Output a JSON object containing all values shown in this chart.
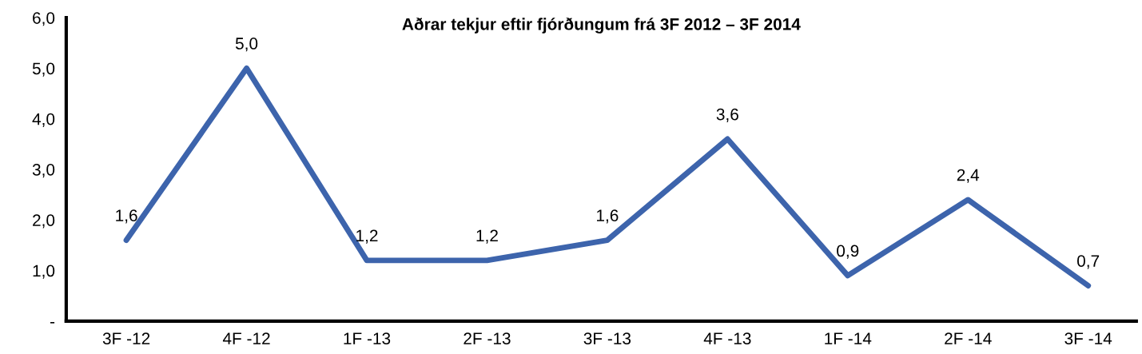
{
  "chart_data": {
    "type": "line",
    "title": "Aðrar tekjur eftir fjórðungum frá 3F 2012 – 3F 2014",
    "categories": [
      "3F -12",
      "4F -12",
      "1F -13",
      "2F -13",
      "3F -13",
      "4F -13",
      "1F -14",
      "2F -14",
      "3F -14"
    ],
    "series": [
      {
        "color": "#3d64ac",
        "values": [
          1.6,
          5.0,
          1.2,
          1.2,
          1.6,
          3.6,
          0.9,
          2.4,
          0.7
        ],
        "value_labels": [
          "1,6",
          "5,0",
          "1,2",
          "1,2",
          "1,6",
          "3,6",
          "0,9",
          "2,4",
          "0,7"
        ]
      }
    ],
    "ylim": [
      0,
      6
    ],
    "yticks": [
      {
        "value": 0,
        "label": "-"
      },
      {
        "value": 1,
        "label": "1,0"
      },
      {
        "value": 2,
        "label": "2,0"
      },
      {
        "value": 3,
        "label": "3,0"
      },
      {
        "value": 4,
        "label": "4,0"
      },
      {
        "value": 5,
        "label": "5,0"
      },
      {
        "value": 6,
        "label": "6,0"
      }
    ],
    "grid": false,
    "legend": false,
    "marker": "none",
    "line_style": "solid"
  }
}
